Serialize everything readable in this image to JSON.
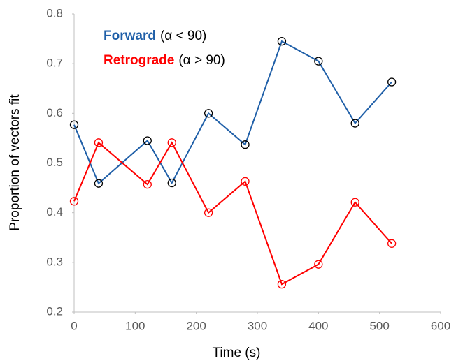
{
  "chart_data": {
    "type": "line",
    "x_label": "Time (s)",
    "y_label": "Proportion of vectors fit",
    "xlim": [
      0,
      600
    ],
    "xticks": [
      0,
      100,
      200,
      300,
      400,
      500,
      600
    ],
    "ylim": [
      0.2,
      0.8
    ],
    "yticks": [
      0.2,
      0.3,
      0.4,
      0.5,
      0.6,
      0.7,
      0.8
    ],
    "grid": false,
    "series": [
      {
        "name": "Forward",
        "legend_suffix": "(α < 90)",
        "color": "#1f5fa8",
        "marker_color": "#000000",
        "x": [
          0,
          40,
          120,
          160,
          220,
          280,
          340,
          400,
          460,
          520
        ],
        "values": [
          0.577,
          0.459,
          0.545,
          0.46,
          0.6,
          0.537,
          0.745,
          0.705,
          0.58,
          0.663
        ]
      },
      {
        "name": "Retrograde",
        "legend_suffix": "(α > 90)",
        "color": "#ff0000",
        "marker_color": "#ff0000",
        "x": [
          0,
          40,
          120,
          160,
          220,
          280,
          340,
          400,
          460,
          520
        ],
        "values": [
          0.423,
          0.541,
          0.457,
          0.541,
          0.4,
          0.463,
          0.256,
          0.296,
          0.421,
          0.338
        ]
      }
    ]
  }
}
